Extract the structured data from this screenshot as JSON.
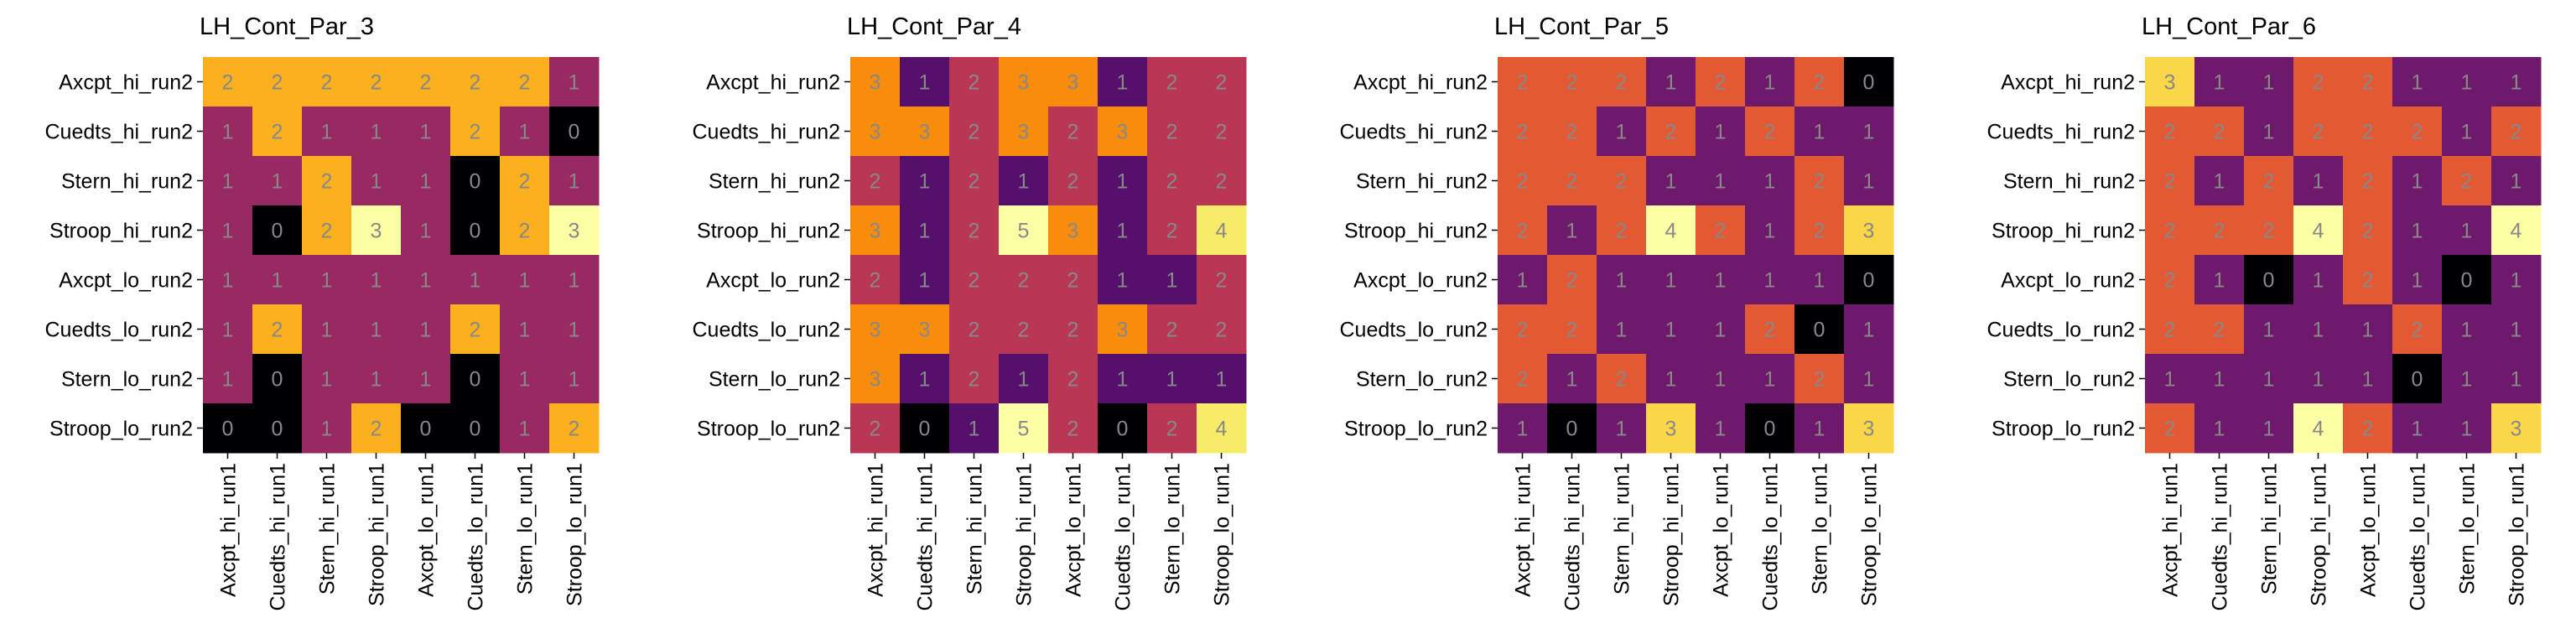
{
  "chart_data": [
    {
      "type": "heatmap",
      "title": "LH_Cont_Par_3",
      "x_categories": [
        "Axcpt_hi_run1",
        "Cuedts_hi_run1",
        "Stern_hi_run1",
        "Stroop_hi_run1",
        "Axcpt_lo_run1",
        "Cuedts_lo_run1",
        "Stern_lo_run1",
        "Stroop_lo_run1"
      ],
      "y_categories": [
        "Axcpt_hi_run2",
        "Cuedts_hi_run2",
        "Stern_hi_run2",
        "Stroop_hi_run2",
        "Axcpt_lo_run2",
        "Cuedts_lo_run2",
        "Stern_lo_run2",
        "Stroop_lo_run2"
      ],
      "values": [
        [
          2,
          2,
          2,
          2,
          2,
          2,
          2,
          1
        ],
        [
          1,
          2,
          1,
          1,
          1,
          2,
          1,
          0
        ],
        [
          1,
          1,
          2,
          1,
          1,
          0,
          2,
          1
        ],
        [
          1,
          0,
          2,
          3,
          1,
          0,
          2,
          3
        ],
        [
          1,
          1,
          1,
          1,
          1,
          1,
          1,
          1
        ],
        [
          1,
          2,
          1,
          1,
          1,
          2,
          1,
          1
        ],
        [
          1,
          0,
          1,
          1,
          1,
          0,
          1,
          1
        ],
        [
          0,
          0,
          1,
          2,
          0,
          0,
          1,
          2
        ]
      ],
      "vmin": 0,
      "vmax": 3,
      "colormap": "inferno"
    },
    {
      "type": "heatmap",
      "title": "LH_Cont_Par_4",
      "x_categories": [
        "Axcpt_hi_run1",
        "Cuedts_hi_run1",
        "Stern_hi_run1",
        "Stroop_hi_run1",
        "Axcpt_lo_run1",
        "Cuedts_lo_run1",
        "Stern_lo_run1",
        "Stroop_lo_run1"
      ],
      "y_categories": [
        "Axcpt_hi_run2",
        "Cuedts_hi_run2",
        "Stern_hi_run2",
        "Stroop_hi_run2",
        "Axcpt_lo_run2",
        "Cuedts_lo_run2",
        "Stern_lo_run2",
        "Stroop_lo_run2"
      ],
      "values": [
        [
          3,
          1,
          2,
          3,
          3,
          1,
          2,
          2
        ],
        [
          3,
          3,
          2,
          3,
          2,
          3,
          2,
          2
        ],
        [
          2,
          1,
          2,
          1,
          2,
          1,
          2,
          2
        ],
        [
          3,
          1,
          2,
          5,
          3,
          1,
          2,
          4
        ],
        [
          2,
          1,
          2,
          2,
          2,
          1,
          1,
          2
        ],
        [
          3,
          3,
          2,
          2,
          2,
          3,
          2,
          2
        ],
        [
          3,
          1,
          2,
          1,
          2,
          1,
          1,
          1
        ],
        [
          2,
          0,
          1,
          5,
          2,
          0,
          2,
          4
        ]
      ],
      "vmin": 0,
      "vmax": 5,
      "colormap": "inferno"
    },
    {
      "type": "heatmap",
      "title": "LH_Cont_Par_5",
      "x_categories": [
        "Axcpt_hi_run1",
        "Cuedts_hi_run1",
        "Stern_hi_run1",
        "Stroop_hi_run1",
        "Axcpt_lo_run1",
        "Cuedts_lo_run1",
        "Stern_lo_run1",
        "Stroop_lo_run1"
      ],
      "y_categories": [
        "Axcpt_hi_run2",
        "Cuedts_hi_run2",
        "Stern_hi_run2",
        "Stroop_hi_run2",
        "Axcpt_lo_run2",
        "Cuedts_lo_run2",
        "Stern_lo_run2",
        "Stroop_lo_run2"
      ],
      "values": [
        [
          2,
          2,
          2,
          1,
          2,
          1,
          2,
          0
        ],
        [
          2,
          2,
          1,
          2,
          1,
          2,
          1,
          1
        ],
        [
          2,
          2,
          2,
          1,
          1,
          1,
          2,
          1
        ],
        [
          2,
          1,
          2,
          4,
          2,
          1,
          2,
          3
        ],
        [
          1,
          2,
          1,
          1,
          1,
          1,
          1,
          0
        ],
        [
          2,
          2,
          1,
          1,
          1,
          2,
          0,
          1
        ],
        [
          2,
          1,
          2,
          1,
          1,
          1,
          2,
          1
        ],
        [
          1,
          0,
          1,
          3,
          1,
          0,
          1,
          3
        ]
      ],
      "vmin": 0,
      "vmax": 4,
      "colormap": "inferno"
    },
    {
      "type": "heatmap",
      "title": "LH_Cont_Par_6",
      "x_categories": [
        "Axcpt_hi_run1",
        "Cuedts_hi_run1",
        "Stern_hi_run1",
        "Stroop_hi_run1",
        "Axcpt_lo_run1",
        "Cuedts_lo_run1",
        "Stern_lo_run1",
        "Stroop_lo_run1"
      ],
      "y_categories": [
        "Axcpt_hi_run2",
        "Cuedts_hi_run2",
        "Stern_hi_run2",
        "Stroop_hi_run2",
        "Axcpt_lo_run2",
        "Cuedts_lo_run2",
        "Stern_lo_run2",
        "Stroop_lo_run2"
      ],
      "values": [
        [
          3,
          1,
          1,
          2,
          2,
          1,
          1,
          1
        ],
        [
          2,
          2,
          1,
          2,
          2,
          2,
          1,
          2
        ],
        [
          2,
          1,
          2,
          1,
          2,
          1,
          2,
          1
        ],
        [
          2,
          2,
          2,
          4,
          2,
          1,
          1,
          4
        ],
        [
          2,
          1,
          0,
          1,
          2,
          1,
          0,
          1
        ],
        [
          2,
          2,
          1,
          1,
          1,
          2,
          1,
          1
        ],
        [
          1,
          1,
          1,
          1,
          1,
          0,
          1,
          1
        ],
        [
          2,
          1,
          1,
          4,
          2,
          1,
          1,
          3
        ]
      ],
      "vmin": 0,
      "vmax": 4,
      "colormap": "inferno"
    }
  ]
}
